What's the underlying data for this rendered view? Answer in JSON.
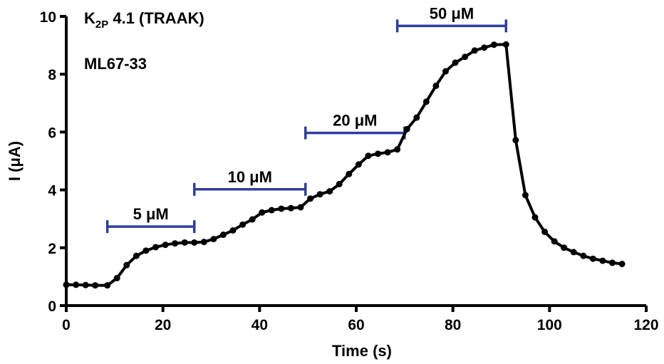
{
  "chart_data": {
    "type": "line",
    "title_main": "K",
    "title_sub": "2P",
    "title_rest": " 4.1 (TRAAK)",
    "annotation": "ML67-33",
    "xlabel": "Time (s)",
    "ylabel": "I (μA)",
    "xlim": [
      0,
      120
    ],
    "ylim": [
      0,
      10
    ],
    "x_ticks": [
      0,
      20,
      40,
      60,
      80,
      100,
      120
    ],
    "y_ticks": [
      0,
      2,
      4,
      6,
      8,
      10
    ],
    "grid": false,
    "series": [
      {
        "x": [
          0,
          2,
          4,
          6,
          8.5,
          10.5,
          12.5,
          14.5,
          16.5,
          18.5,
          20.5,
          22.5,
          24.5,
          26.5,
          28.5,
          30.5,
          32.5,
          34.5,
          36.5,
          38.5,
          40.5,
          42.5,
          44.5,
          46.5,
          48.5,
          50.5,
          52.5,
          54.5,
          56.5,
          58.5,
          60.5,
          62.5,
          64.5,
          66.5,
          68.5,
          70.5,
          72.5,
          74.5,
          76.5,
          78.5,
          80.5,
          82.5,
          84.5,
          86.5,
          88.5,
          91,
          93,
          95,
          97,
          99,
          101,
          103,
          105,
          107,
          109,
          111,
          113,
          115
        ],
        "values": [
          0.72,
          0.72,
          0.71,
          0.7,
          0.7,
          0.95,
          1.4,
          1.72,
          1.9,
          2.02,
          2.1,
          2.15,
          2.18,
          2.18,
          2.2,
          2.3,
          2.45,
          2.6,
          2.8,
          2.98,
          3.22,
          3.3,
          3.35,
          3.37,
          3.4,
          3.7,
          3.85,
          3.95,
          4.2,
          4.55,
          4.88,
          5.18,
          5.25,
          5.3,
          5.4,
          6.1,
          6.5,
          7.05,
          7.6,
          8.1,
          8.4,
          8.6,
          8.82,
          8.92,
          9.02,
          9.03,
          5.72,
          3.82,
          3.05,
          2.55,
          2.22,
          2.0,
          1.85,
          1.72,
          1.62,
          1.55,
          1.48,
          1.44
        ]
      }
    ],
    "bars": [
      {
        "label": "5 μM",
        "x_start": 8.5,
        "x_end": 26.5,
        "y": 2.73
      },
      {
        "label": "10 μM",
        "x_start": 26.5,
        "x_end": 49.5,
        "y": 4.02
      },
      {
        "label": "20 μM",
        "x_start": 49.5,
        "x_end": 70,
        "y": 5.97
      },
      {
        "label": "50 μM",
        "x_start": 68.5,
        "x_end": 91,
        "y": 9.67
      }
    ],
    "bar_color": "#2e3e9c",
    "line_color": "#000000"
  }
}
